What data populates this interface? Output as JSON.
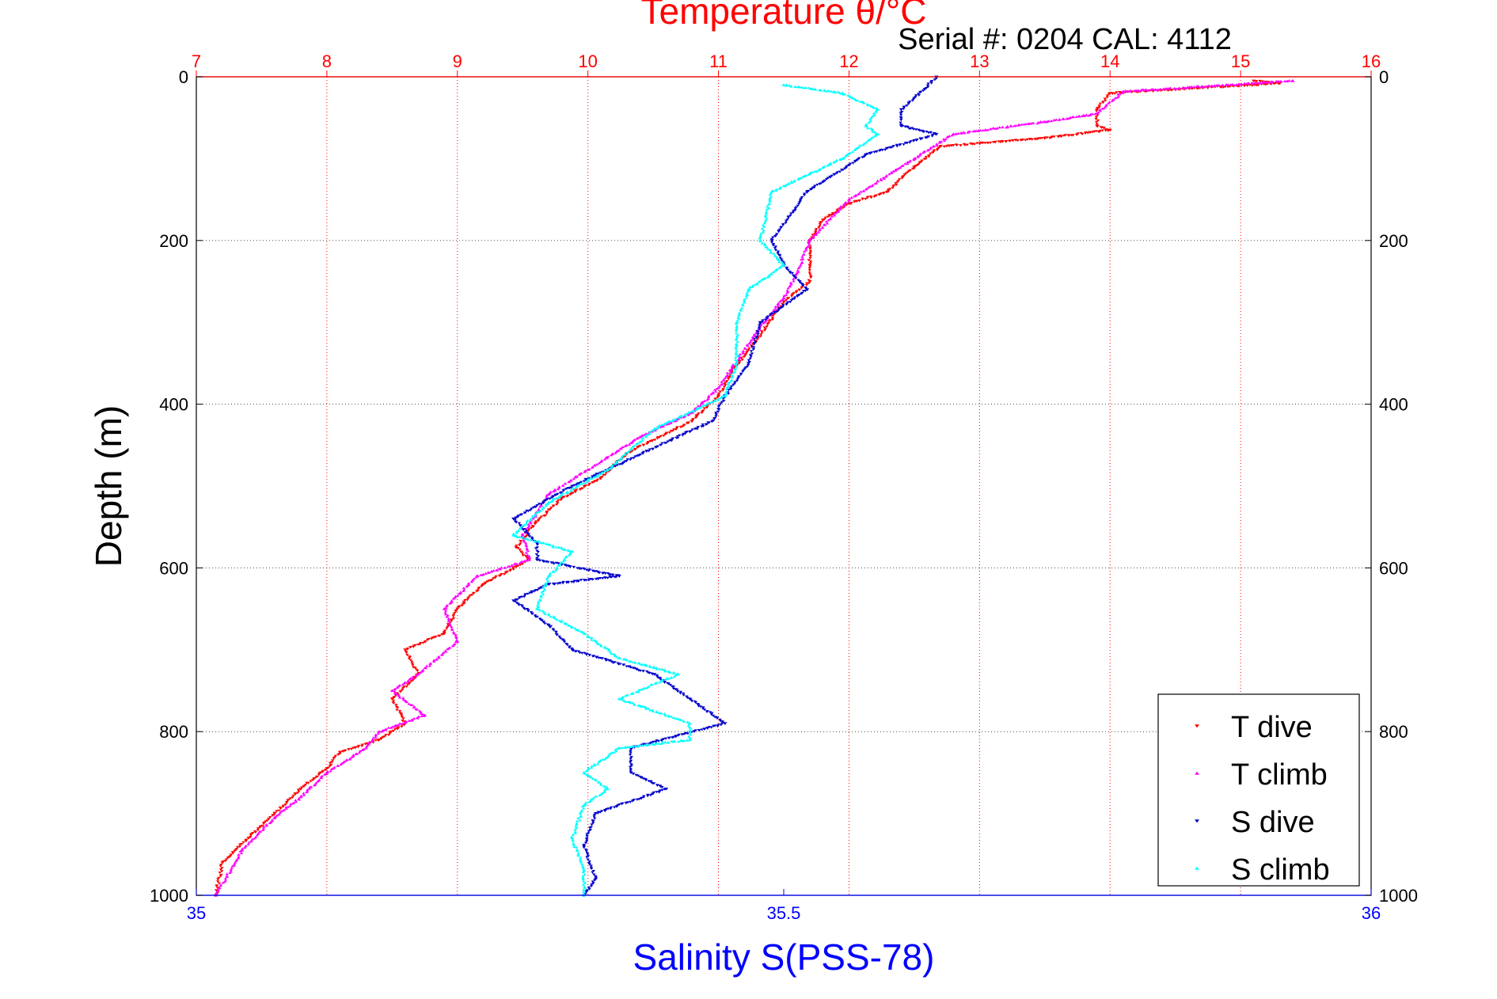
{
  "chart_data": {
    "type": "scatter",
    "title": "Temperature θ/°C",
    "subtitle": "Serial #: 0204  CAL: 4112",
    "ylabel": "Depth (m)",
    "x_top_label": "Temperature θ/°C",
    "x_bottom_label": "Salinity S(PSS-78)",
    "y_range": [
      0,
      1000
    ],
    "y_reversed": true,
    "y_ticks": [
      0,
      200,
      400,
      600,
      800,
      1000
    ],
    "x_top_range": [
      7,
      16
    ],
    "x_top_ticks": [
      7,
      8,
      9,
      10,
      11,
      12,
      13,
      14,
      15,
      16
    ],
    "x_bottom_range": [
      35,
      36
    ],
    "x_bottom_ticks": [
      35,
      35.5,
      36
    ],
    "grid": true,
    "legend_position": "bottom-right",
    "colors": {
      "temperature_axis": "#ff0000",
      "salinity_axis": "#0000ff"
    },
    "series": [
      {
        "name": "T dive",
        "axis": "temperature",
        "color": "#ff0000",
        "marker": "triangle-down",
        "points": [
          [
            15.1,
            5
          ],
          [
            15.3,
            8
          ],
          [
            14.0,
            20
          ],
          [
            13.9,
            40
          ],
          [
            13.9,
            60
          ],
          [
            14.0,
            65
          ],
          [
            13.5,
            75
          ],
          [
            12.7,
            85
          ],
          [
            12.5,
            110
          ],
          [
            12.3,
            140
          ],
          [
            12.0,
            155
          ],
          [
            11.8,
            175
          ],
          [
            11.7,
            200
          ],
          [
            11.7,
            230
          ],
          [
            11.7,
            250
          ],
          [
            11.5,
            275
          ],
          [
            11.3,
            320
          ],
          [
            11.1,
            360
          ],
          [
            11.0,
            390
          ],
          [
            10.8,
            420
          ],
          [
            10.3,
            460
          ],
          [
            10.1,
            490
          ],
          [
            9.8,
            515
          ],
          [
            9.6,
            545
          ],
          [
            9.45,
            575
          ],
          [
            9.55,
            590
          ],
          [
            9.2,
            620
          ],
          [
            9.0,
            650
          ],
          [
            8.9,
            680
          ],
          [
            8.6,
            700
          ],
          [
            8.7,
            730
          ],
          [
            8.5,
            760
          ],
          [
            8.6,
            790
          ],
          [
            8.4,
            810
          ],
          [
            8.1,
            825
          ],
          [
            8.0,
            845
          ],
          [
            7.8,
            870
          ],
          [
            7.6,
            900
          ],
          [
            7.4,
            930
          ],
          [
            7.2,
            960
          ],
          [
            7.15,
            1000
          ]
        ]
      },
      {
        "name": "T climb",
        "axis": "temperature",
        "color": "#ff00ff",
        "marker": "triangle-up",
        "points": [
          [
            15.4,
            5
          ],
          [
            14.1,
            18
          ],
          [
            13.9,
            45
          ],
          [
            13.5,
            55
          ],
          [
            12.8,
            70
          ],
          [
            12.5,
            100
          ],
          [
            12.0,
            150
          ],
          [
            11.7,
            200
          ],
          [
            11.6,
            240
          ],
          [
            11.5,
            270
          ],
          [
            11.3,
            310
          ],
          [
            11.0,
            380
          ],
          [
            10.8,
            410
          ],
          [
            10.4,
            440
          ],
          [
            10.0,
            480
          ],
          [
            9.7,
            510
          ],
          [
            9.5,
            560
          ],
          [
            9.55,
            590
          ],
          [
            9.15,
            610
          ],
          [
            8.9,
            650
          ],
          [
            9.0,
            690
          ],
          [
            8.7,
            730
          ],
          [
            8.5,
            750
          ],
          [
            8.75,
            780
          ],
          [
            8.4,
            800
          ],
          [
            8.3,
            820
          ],
          [
            8.0,
            850
          ],
          [
            7.8,
            880
          ],
          [
            7.6,
            905
          ],
          [
            7.35,
            945
          ],
          [
            7.15,
            1000
          ]
        ]
      },
      {
        "name": "S dive",
        "axis": "salinity",
        "color": "#0000cc",
        "marker": "triangle-down",
        "points": [
          [
            35.63,
            0
          ],
          [
            35.62,
            15
          ],
          [
            35.6,
            40
          ],
          [
            35.6,
            60
          ],
          [
            35.63,
            70
          ],
          [
            35.57,
            95
          ],
          [
            35.52,
            140
          ],
          [
            35.49,
            200
          ],
          [
            35.5,
            230
          ],
          [
            35.52,
            260
          ],
          [
            35.48,
            300
          ],
          [
            35.47,
            350
          ],
          [
            35.45,
            390
          ],
          [
            35.44,
            420
          ],
          [
            35.38,
            460
          ],
          [
            35.32,
            500
          ],
          [
            35.27,
            540
          ],
          [
            35.29,
            570
          ],
          [
            35.29,
            590
          ],
          [
            35.36,
            610
          ],
          [
            35.3,
            620
          ],
          [
            35.27,
            640
          ],
          [
            35.3,
            670
          ],
          [
            35.32,
            700
          ],
          [
            35.39,
            730
          ],
          [
            35.42,
            760
          ],
          [
            35.45,
            790
          ],
          [
            35.37,
            820
          ],
          [
            35.37,
            850
          ],
          [
            35.4,
            870
          ],
          [
            35.34,
            900
          ],
          [
            35.33,
            940
          ],
          [
            35.34,
            980
          ],
          [
            35.33,
            1000
          ]
        ]
      },
      {
        "name": "S climb",
        "axis": "salinity",
        "color": "#00ffff",
        "marker": "triangle-up",
        "points": [
          [
            35.5,
            10
          ],
          [
            35.55,
            20
          ],
          [
            35.58,
            40
          ],
          [
            35.57,
            60
          ],
          [
            35.58,
            70
          ],
          [
            35.55,
            100
          ],
          [
            35.49,
            140
          ],
          [
            35.48,
            200
          ],
          [
            35.5,
            230
          ],
          [
            35.47,
            260
          ],
          [
            35.46,
            300
          ],
          [
            35.46,
            350
          ],
          [
            35.45,
            390
          ],
          [
            35.39,
            430
          ],
          [
            35.35,
            480
          ],
          [
            35.3,
            520
          ],
          [
            35.27,
            560
          ],
          [
            35.32,
            580
          ],
          [
            35.3,
            610
          ],
          [
            35.29,
            650
          ],
          [
            35.33,
            680
          ],
          [
            35.36,
            710
          ],
          [
            35.41,
            730
          ],
          [
            35.36,
            760
          ],
          [
            35.42,
            790
          ],
          [
            35.42,
            810
          ],
          [
            35.36,
            820
          ],
          [
            35.33,
            850
          ],
          [
            35.35,
            870
          ],
          [
            35.33,
            890
          ],
          [
            35.32,
            930
          ],
          [
            35.33,
            970
          ],
          [
            35.33,
            1000
          ]
        ]
      }
    ]
  }
}
